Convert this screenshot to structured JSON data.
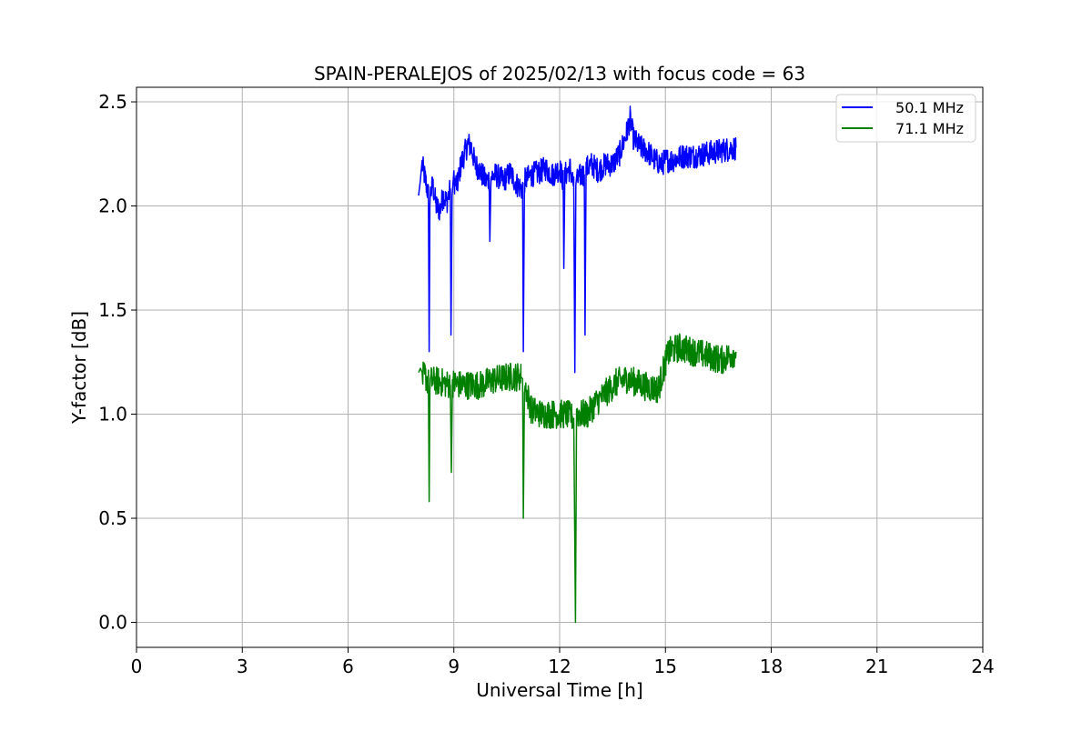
{
  "chart_data": {
    "type": "line",
    "title": "SPAIN-PERALEJOS of 2025/02/13 with focus code = 63",
    "xlabel": "Universal Time [h]",
    "ylabel": "Y-factor [dB]",
    "xlim": [
      0,
      24
    ],
    "ylim": [
      -0.12,
      2.57
    ],
    "xticks": [
      0,
      3,
      6,
      9,
      12,
      15,
      18,
      21,
      24
    ],
    "xtick_labels": [
      "0",
      "3",
      "6",
      "9",
      "12",
      "15",
      "18",
      "21",
      "24"
    ],
    "yticks": [
      0.0,
      0.5,
      1.0,
      1.5,
      2.0,
      2.5
    ],
    "ytick_labels": [
      "0.0",
      "0.5",
      "1.0",
      "1.5",
      "2.0",
      "2.5"
    ],
    "grid": true,
    "legend_position": "top-right",
    "series": [
      {
        "name": "50.1 MHz",
        "color": "#0000ff",
        "x": [
          8.0,
          8.05,
          8.1,
          8.2,
          8.28,
          8.3,
          8.32,
          8.4,
          8.5,
          8.6,
          8.7,
          8.8,
          8.9,
          8.92,
          8.95,
          9.0,
          9.1,
          9.2,
          9.3,
          9.4,
          9.5,
          9.6,
          9.7,
          9.8,
          9.9,
          10.0,
          10.02,
          10.05,
          10.2,
          10.4,
          10.6,
          10.8,
          10.95,
          10.97,
          11.0,
          11.2,
          11.4,
          11.6,
          11.8,
          12.0,
          12.1,
          12.12,
          12.15,
          12.3,
          12.4,
          12.43,
          12.46,
          12.5,
          12.6,
          12.7,
          12.72,
          12.75,
          12.9,
          13.1,
          13.3,
          13.5,
          13.7,
          13.9,
          14.0,
          14.1,
          14.3,
          14.5,
          14.7,
          14.9,
          15.0,
          15.2,
          15.5,
          15.8,
          16.1,
          16.4,
          16.7,
          17.0
        ],
        "y": [
          2.05,
          2.12,
          2.2,
          2.12,
          2.05,
          1.3,
          2.05,
          2.1,
          2.0,
          1.98,
          2.05,
          2.02,
          2.08,
          1.38,
          2.05,
          2.12,
          2.1,
          2.2,
          2.25,
          2.3,
          2.28,
          2.2,
          2.18,
          2.15,
          2.12,
          2.13,
          1.83,
          2.14,
          2.15,
          2.12,
          2.16,
          2.1,
          2.08,
          1.3,
          2.12,
          2.15,
          2.16,
          2.18,
          2.15,
          2.18,
          2.12,
          1.7,
          2.15,
          2.18,
          2.1,
          1.2,
          2.1,
          2.12,
          2.15,
          2.15,
          1.38,
          2.18,
          2.2,
          2.17,
          2.2,
          2.2,
          2.25,
          2.35,
          2.42,
          2.32,
          2.28,
          2.26,
          2.22,
          2.2,
          2.22,
          2.22,
          2.24,
          2.24,
          2.25,
          2.26,
          2.27,
          2.28
        ],
        "noise": 0.06
      },
      {
        "name": "71.1 MHz",
        "color": "#008000",
        "x": [
          8.0,
          8.05,
          8.1,
          8.2,
          8.28,
          8.3,
          8.32,
          8.5,
          8.9,
          8.93,
          8.96,
          9.2,
          9.5,
          9.8,
          10.0,
          10.3,
          10.6,
          10.9,
          10.95,
          10.97,
          11.0,
          11.2,
          11.5,
          11.8,
          12.0,
          12.2,
          12.4,
          12.45,
          12.48,
          12.6,
          12.8,
          13.0,
          13.3,
          13.6,
          13.9,
          14.2,
          14.5,
          14.8,
          15.0,
          15.1,
          15.4,
          15.8,
          16.2,
          16.6,
          17.0
        ],
        "y": [
          1.2,
          1.22,
          1.18,
          1.18,
          1.15,
          0.58,
          1.16,
          1.16,
          1.14,
          0.72,
          1.15,
          1.14,
          1.14,
          1.14,
          1.16,
          1.17,
          1.18,
          1.18,
          1.17,
          0.5,
          1.15,
          1.02,
          1.0,
          1.0,
          1.0,
          1.0,
          0.98,
          0.0,
          1.0,
          1.0,
          1.0,
          1.05,
          1.1,
          1.15,
          1.17,
          1.15,
          1.13,
          1.12,
          1.25,
          1.3,
          1.32,
          1.3,
          1.28,
          1.26,
          1.3
        ],
        "noise": 0.07
      }
    ]
  }
}
